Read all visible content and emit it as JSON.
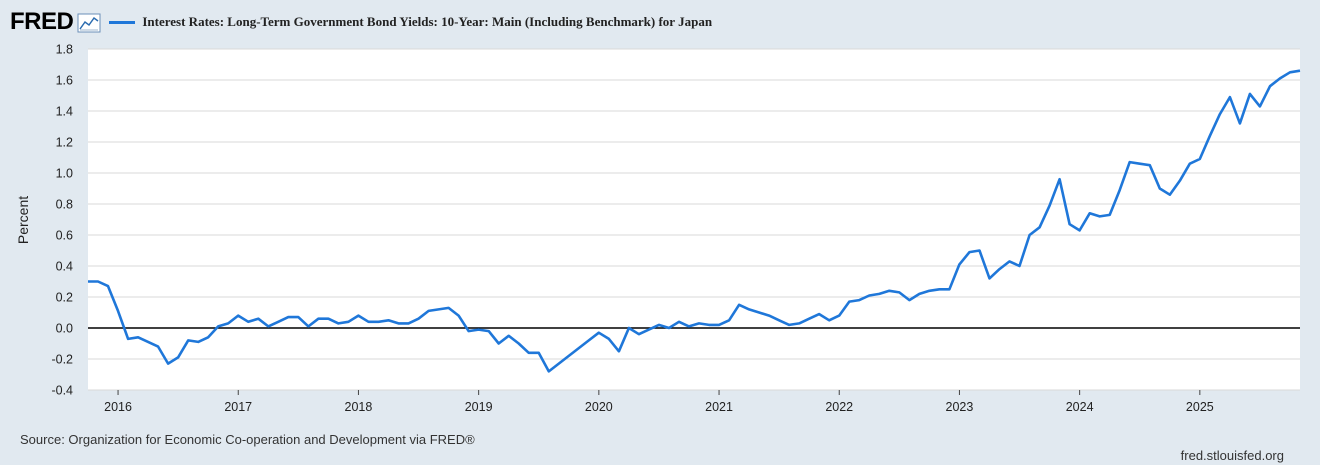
{
  "header": {
    "logo_text": "FRED",
    "series_title": "Interest Rates: Long-Term Government Bond Yields: 10-Year: Main (Including Benchmark) for Japan"
  },
  "footer": {
    "source": "Source: Organization for Economic Co-operation and Development via FRED®",
    "url": "fred.stlouisfed.org"
  },
  "colors": {
    "line": "#1f77d9",
    "background": "#e1e9f0",
    "plot_background": "#ffffff",
    "gridline": "#d9d9d9",
    "zero_line": "#000000"
  },
  "chart_data": {
    "type": "line",
    "title": "Interest Rates: Long-Term Government Bond Yields: 10-Year: Main (Including Benchmark) for Japan",
    "xlabel": "",
    "ylabel": "Percent",
    "ylim": [
      -0.4,
      1.8
    ],
    "yticks": [
      "1.8",
      "1.6",
      "1.4",
      "1.2",
      "1.0",
      "0.8",
      "0.6",
      "0.4",
      "0.2",
      "0.0",
      "-0.2",
      "-0.4"
    ],
    "xticks": [
      "2016",
      "2017",
      "2018",
      "2019",
      "2020",
      "2021",
      "2022",
      "2023",
      "2024",
      "2025"
    ],
    "x_start": "2015-10",
    "frequency": "monthly",
    "legend": "top-left",
    "series": [
      {
        "name": "Interest Rates: Long-Term Government Bond Yields: 10-Year: Main (Including Benchmark) for Japan",
        "values": [
          0.3,
          0.3,
          0.27,
          0.11,
          -0.07,
          -0.06,
          -0.09,
          -0.12,
          -0.23,
          -0.19,
          -0.08,
          -0.09,
          -0.06,
          0.01,
          0.03,
          0.08,
          0.04,
          0.06,
          0.01,
          0.04,
          0.07,
          0.07,
          0.01,
          0.06,
          0.06,
          0.03,
          0.04,
          0.08,
          0.04,
          0.04,
          0.05,
          0.03,
          0.03,
          0.06,
          0.11,
          0.12,
          0.13,
          0.08,
          -0.02,
          -0.01,
          -0.02,
          -0.1,
          -0.05,
          -0.1,
          -0.16,
          -0.16,
          -0.28,
          -0.23,
          -0.18,
          -0.13,
          -0.08,
          -0.03,
          -0.07,
          -0.15,
          0.0,
          -0.04,
          -0.01,
          0.02,
          0.0,
          0.04,
          0.01,
          0.03,
          0.02,
          0.02,
          0.05,
          0.15,
          0.12,
          0.1,
          0.08,
          0.05,
          0.02,
          0.03,
          0.06,
          0.09,
          0.05,
          0.08,
          0.17,
          0.18,
          0.21,
          0.22,
          0.24,
          0.23,
          0.18,
          0.22,
          0.24,
          0.25,
          0.25,
          0.41,
          0.49,
          0.5,
          0.32,
          0.38,
          0.43,
          0.4,
          0.6,
          0.65,
          0.79,
          0.96,
          0.67,
          0.63,
          0.74,
          0.72,
          0.73,
          0.89,
          1.07,
          1.06,
          1.05,
          0.9,
          0.86,
          0.95,
          1.06,
          1.09,
          1.24,
          1.38,
          1.49,
          1.32,
          1.51,
          1.43,
          1.56,
          1.61,
          1.65,
          1.66
        ]
      }
    ]
  }
}
